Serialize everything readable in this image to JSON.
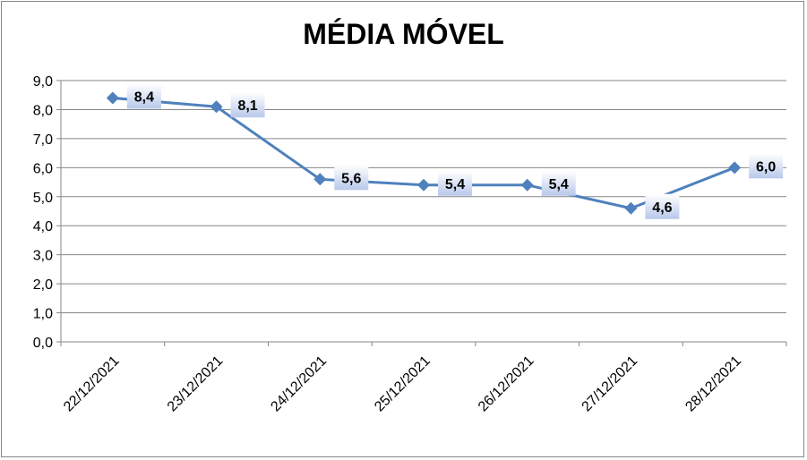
{
  "chart_data": {
    "type": "line",
    "title": "MÉDIA MÓVEL",
    "categories": [
      "22/12/2021",
      "23/12/2021",
      "24/12/2021",
      "25/12/2021",
      "26/12/2021",
      "27/12/2021",
      "28/12/2021"
    ],
    "series": [
      {
        "values": [
          8.4,
          8.1,
          5.6,
          5.4,
          5.4,
          4.6,
          6.0
        ],
        "data_labels": [
          "8,4",
          "8,1",
          "5,6",
          "5,4",
          "5,4",
          "4,6",
          "6,0"
        ]
      }
    ],
    "y_ticks": [
      "0,0",
      "1,0",
      "2,0",
      "3,0",
      "4,0",
      "5,0",
      "6,0",
      "7,0",
      "8,0",
      "9,0"
    ],
    "ylim": [
      0,
      9
    ],
    "xlabel": "",
    "ylabel": "",
    "grid": true,
    "legend": "none",
    "colors": {
      "line": "#4F81BD",
      "grid": "#868686",
      "label_box_light": "#ffffff",
      "label_box_dark": "#b8c8ea"
    }
  }
}
